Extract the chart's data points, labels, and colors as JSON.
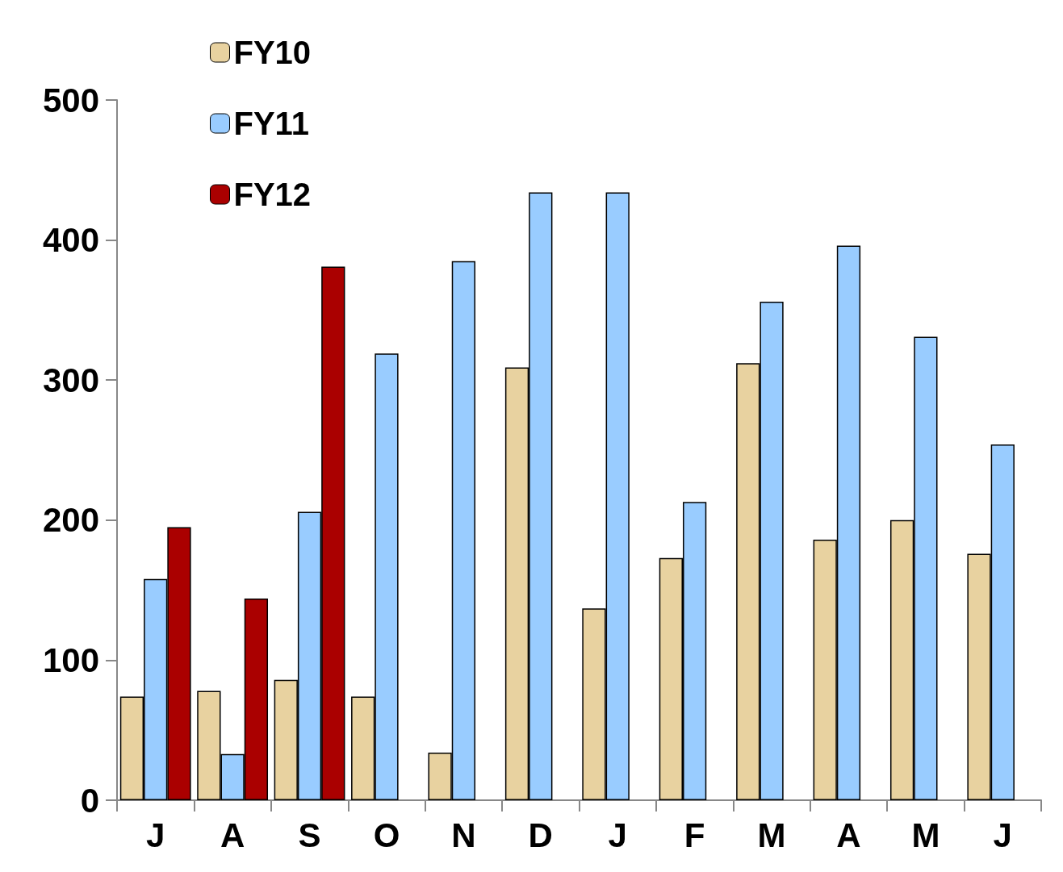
{
  "chart_data": {
    "type": "bar",
    "categories": [
      "J",
      "A",
      "S",
      "O",
      "N",
      "D",
      "J",
      "F",
      "M",
      "A",
      "M",
      "J"
    ],
    "series": [
      {
        "name": "FY10",
        "color": "#e8d2a0",
        "values": [
          74,
          78,
          86,
          74,
          34,
          309,
          137,
          173,
          312,
          186,
          200,
          176
        ]
      },
      {
        "name": "FY11",
        "color": "#99ccff",
        "values": [
          158,
          33,
          206,
          319,
          385,
          434,
          434,
          213,
          356,
          396,
          331,
          254
        ]
      },
      {
        "name": "FY12",
        "color": "#aa0000",
        "values": [
          195,
          144,
          381,
          null,
          null,
          null,
          null,
          null,
          null,
          null,
          null,
          null
        ]
      }
    ],
    "ylim": [
      0,
      500
    ],
    "yticks": [
      0,
      100,
      200,
      300,
      400,
      500
    ],
    "grid": false,
    "legend": "top left"
  }
}
